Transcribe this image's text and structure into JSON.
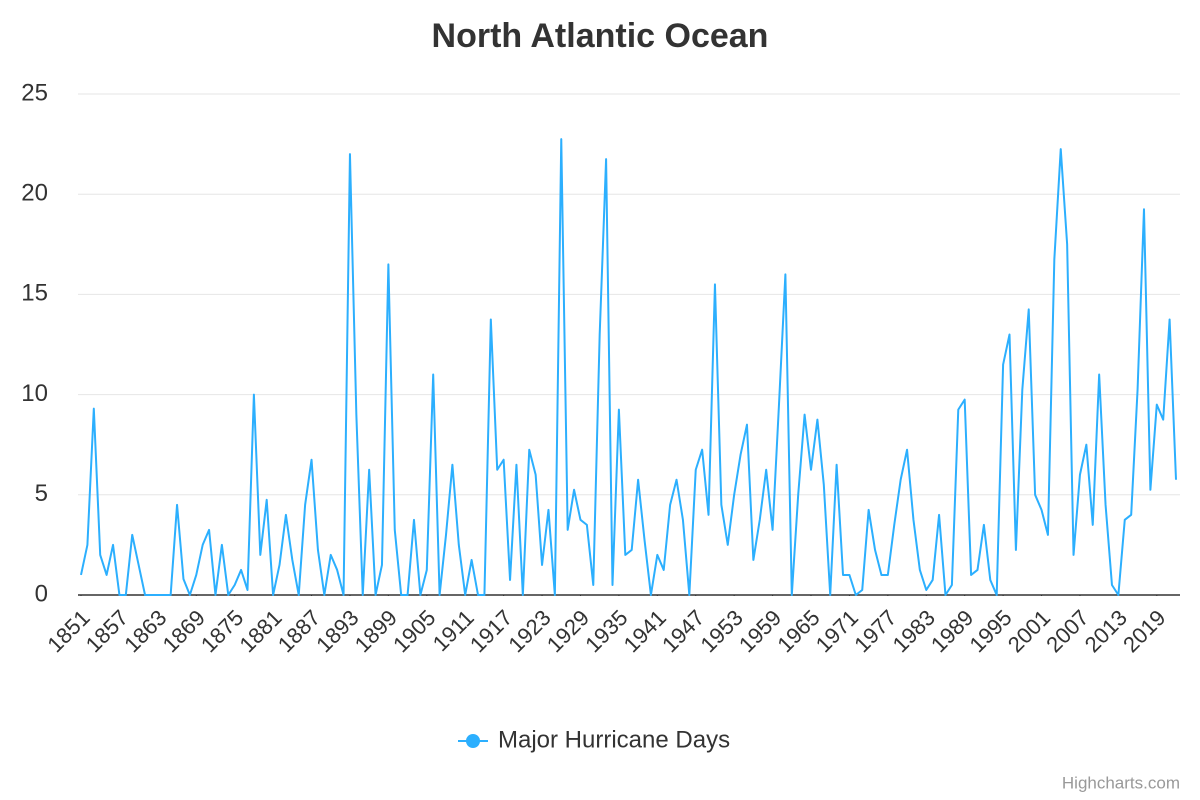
{
  "chart_data": {
    "type": "line",
    "title": "North Atlantic Ocean",
    "credits": "Highcharts.com",
    "x": [
      1851,
      1852,
      1853,
      1854,
      1855,
      1856,
      1857,
      1858,
      1859,
      1860,
      1861,
      1862,
      1863,
      1864,
      1865,
      1866,
      1867,
      1868,
      1869,
      1870,
      1871,
      1872,
      1873,
      1874,
      1875,
      1876,
      1877,
      1878,
      1879,
      1880,
      1881,
      1882,
      1883,
      1884,
      1885,
      1886,
      1887,
      1888,
      1889,
      1890,
      1891,
      1892,
      1893,
      1894,
      1895,
      1896,
      1897,
      1898,
      1899,
      1900,
      1901,
      1902,
      1903,
      1904,
      1905,
      1906,
      1907,
      1908,
      1909,
      1910,
      1911,
      1912,
      1913,
      1914,
      1915,
      1916,
      1917,
      1918,
      1919,
      1920,
      1921,
      1922,
      1923,
      1924,
      1925,
      1926,
      1927,
      1928,
      1929,
      1930,
      1931,
      1932,
      1933,
      1934,
      1935,
      1936,
      1937,
      1938,
      1939,
      1940,
      1941,
      1942,
      1943,
      1944,
      1945,
      1946,
      1947,
      1948,
      1949,
      1950,
      1951,
      1952,
      1953,
      1954,
      1955,
      1956,
      1957,
      1958,
      1959,
      1960,
      1961,
      1962,
      1963,
      1964,
      1965,
      1966,
      1967,
      1968,
      1969,
      1970,
      1971,
      1972,
      1973,
      1974,
      1975,
      1976,
      1977,
      1978,
      1979,
      1980,
      1981,
      1982,
      1983,
      1984,
      1985,
      1986,
      1987,
      1988,
      1989,
      1990,
      1991,
      1992,
      1993,
      1994,
      1995,
      1996,
      1997,
      1998,
      1999,
      2000,
      2001,
      2002,
      2003,
      2004,
      2005,
      2006,
      2007,
      2008,
      2009,
      2010,
      2011,
      2012,
      2013,
      2014,
      2015,
      2016,
      2017,
      2018,
      2019,
      2020,
      2021,
      2022
    ],
    "series": [
      {
        "name": "Major Hurricane Days",
        "color": "#2caffe",
        "values": [
          1,
          2.5,
          9.3,
          2,
          1,
          2.5,
          0,
          0,
          3,
          1.5,
          0,
          0,
          0,
          0,
          0,
          4.5,
          0.8,
          0,
          1,
          2.5,
          3.25,
          0,
          2.5,
          0,
          0.5,
          1.25,
          0.25,
          10,
          2,
          4.75,
          0,
          1.5,
          4,
          1.75,
          0,
          4.5,
          6.75,
          2.25,
          0,
          2,
          1.25,
          0,
          22,
          9,
          0,
          6.25,
          0,
          1.5,
          16.5,
          3.25,
          0,
          0,
          3.75,
          0,
          1.25,
          11,
          0,
          3,
          6.5,
          2.5,
          0,
          1.75,
          0,
          0,
          13.75,
          6.25,
          6.75,
          0.75,
          6.5,
          0,
          7.25,
          6,
          1.5,
          4.25,
          0,
          22.75,
          3.25,
          5.25,
          3.75,
          3.5,
          0.5,
          13,
          21.75,
          0.5,
          9.25,
          2,
          2.25,
          5.75,
          2.75,
          0,
          2,
          1.25,
          4.5,
          5.75,
          3.75,
          0,
          6.25,
          7.25,
          4,
          15.5,
          4.5,
          2.5,
          5,
          7,
          8.5,
          1.75,
          3.75,
          6.25,
          3.25,
          9.5,
          16,
          0,
          5,
          9,
          6.25,
          8.75,
          5.5,
          0,
          6.5,
          1,
          1,
          0,
          0.25,
          4.25,
          2.25,
          1,
          1,
          3.5,
          5.75,
          7.25,
          3.75,
          1.25,
          0.25,
          0.75,
          4,
          0,
          0.5,
          9.25,
          9.75,
          1,
          1.25,
          3.5,
          0.75,
          0,
          11.5,
          13,
          2.25,
          10.25,
          14.25,
          5,
          4.25,
          3,
          16.75,
          22.25,
          17.5,
          2,
          6,
          7.5,
          3.5,
          11,
          4.5,
          0.5,
          0,
          3.75,
          4,
          10.25,
          19.25,
          5.25,
          9.5,
          8.75,
          13.75,
          5.75
        ]
      }
    ],
    "xlim": [
      1851,
      2022
    ],
    "xticks": [
      1851,
      1857,
      1863,
      1869,
      1875,
      1881,
      1887,
      1893,
      1899,
      1905,
      1911,
      1917,
      1923,
      1929,
      1935,
      1941,
      1947,
      1953,
      1959,
      1965,
      1971,
      1977,
      1983,
      1989,
      1995,
      2001,
      2007,
      2013,
      2019
    ],
    "ylim": [
      0,
      25
    ],
    "yticks": [
      0,
      5,
      10,
      15,
      20,
      25
    ],
    "grid": true,
    "legend": "bottom"
  }
}
